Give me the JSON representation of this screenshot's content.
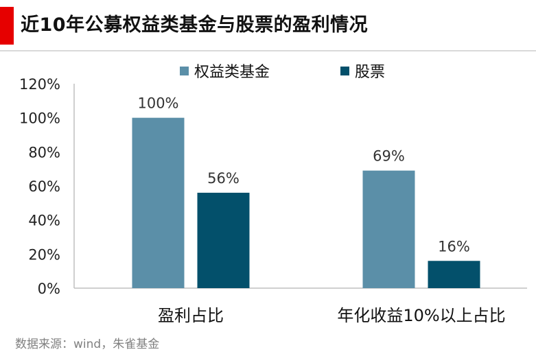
{
  "header": {
    "title": "近10年公募权益类基金与股票的盈利情况",
    "accent_color": "#e60000"
  },
  "chart_data": {
    "type": "bar",
    "categories": [
      "盈利占比",
      "年化收益10%以上占比"
    ],
    "series": [
      {
        "name": "权益类基金",
        "values": [
          100,
          69
        ],
        "labels": [
          "100%",
          "69%"
        ],
        "color": "#5b8fa8"
      },
      {
        "name": "股票",
        "values": [
          56,
          16
        ],
        "labels": [
          "56%",
          "16%"
        ],
        "color": "#03506b"
      }
    ],
    "yticks": [
      "0%",
      "20%",
      "40%",
      "60%",
      "80%",
      "100%",
      "120%"
    ],
    "ylim": [
      0,
      120
    ],
    "legend": "top",
    "grid": false
  },
  "footer": {
    "source": "数据来源：wind，朱雀基金"
  }
}
